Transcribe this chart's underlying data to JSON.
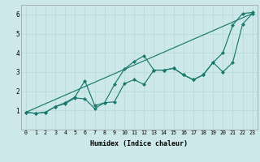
{
  "xlabel": "Humidex (Indice chaleur)",
  "bg_color": "#cce8e8",
  "line_color": "#1a7a6e",
  "grid_color": "#b8d8d8",
  "xlim": [
    -0.5,
    23.5
  ],
  "ylim": [
    0,
    6.5
  ],
  "line1_x": [
    0,
    1,
    2,
    3,
    4,
    5,
    6,
    7,
    8,
    9,
    10,
    11,
    12,
    13,
    14,
    15,
    16,
    17,
    18,
    19,
    20,
    21,
    22,
    23
  ],
  "line1_y": [
    0.9,
    0.85,
    0.9,
    1.2,
    1.4,
    1.7,
    2.55,
    1.25,
    1.4,
    1.45,
    2.4,
    2.6,
    2.35,
    3.1,
    3.1,
    3.2,
    2.85,
    2.6,
    2.85,
    3.5,
    3.0,
    3.5,
    5.5,
    6.05
  ],
  "line2_x": [
    0,
    1,
    2,
    3,
    4,
    5,
    6,
    7,
    8,
    9,
    10,
    11,
    12,
    13,
    14,
    15,
    16,
    17,
    18,
    19,
    20,
    21,
    22,
    23
  ],
  "line2_y": [
    0.9,
    0.85,
    0.9,
    1.2,
    1.35,
    1.65,
    1.6,
    1.1,
    1.4,
    2.35,
    3.15,
    3.55,
    3.85,
    3.1,
    3.1,
    3.2,
    2.85,
    2.6,
    2.85,
    3.5,
    4.0,
    5.45,
    6.05,
    6.1
  ],
  "line3_x": [
    0,
    23
  ],
  "line3_y": [
    0.9,
    6.05
  ]
}
